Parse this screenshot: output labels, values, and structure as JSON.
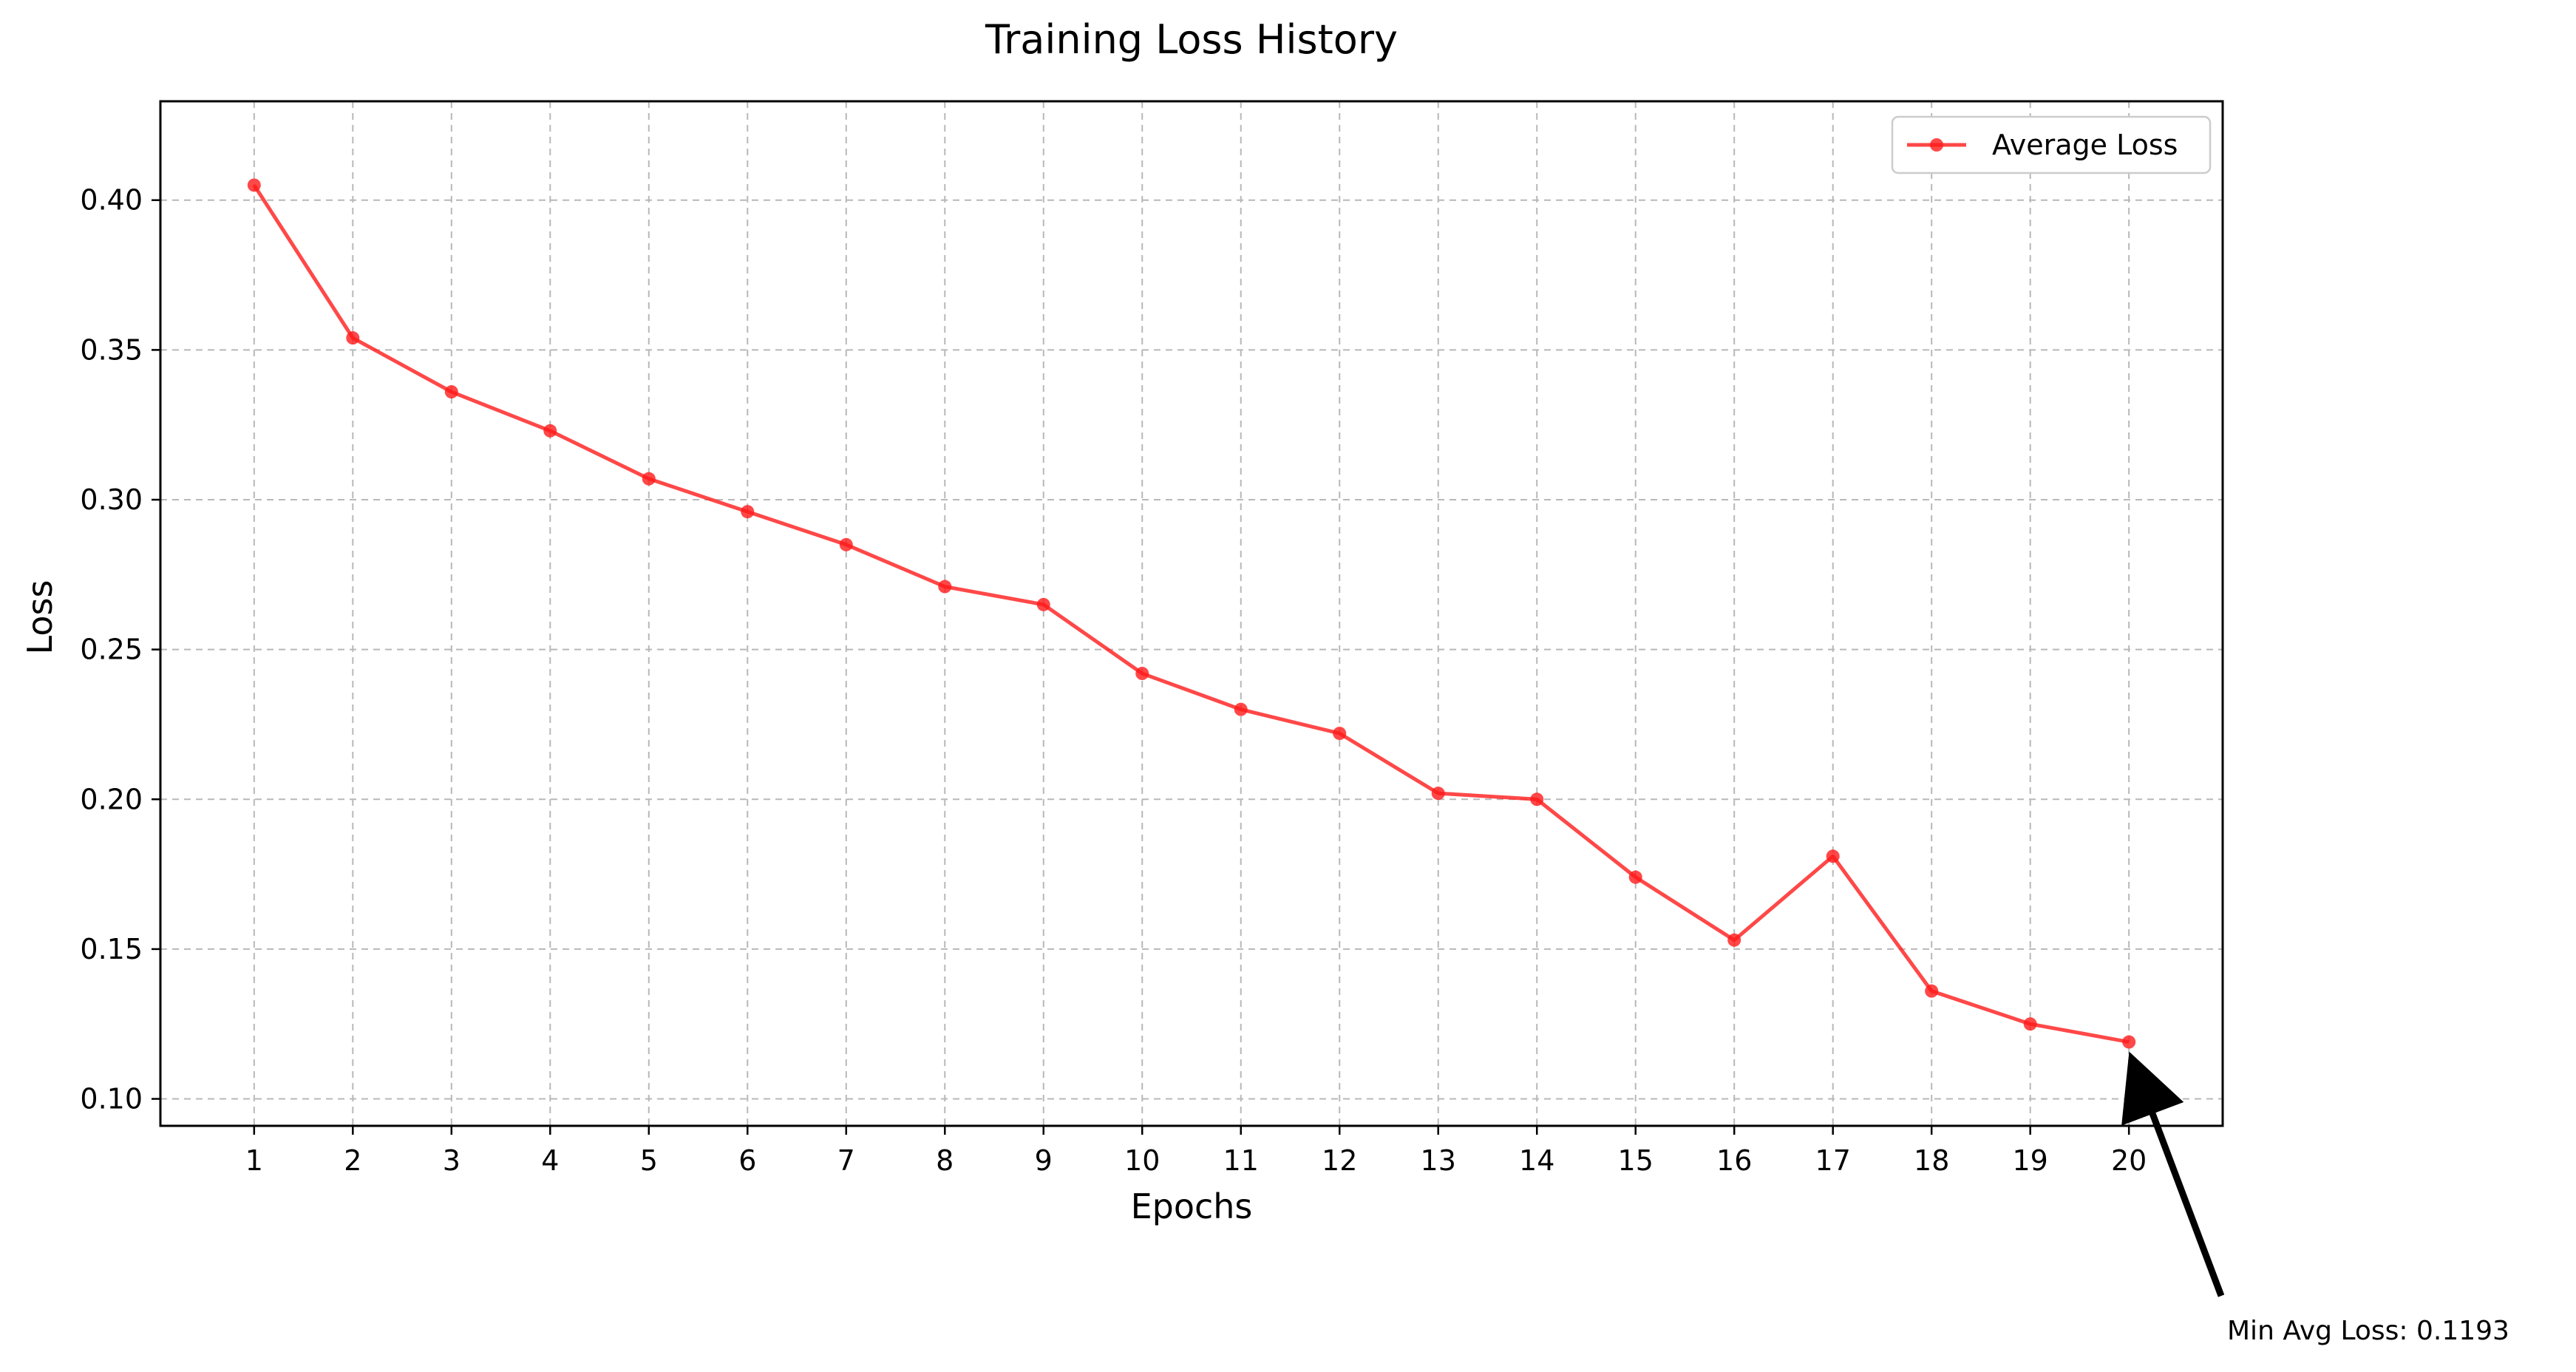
{
  "chart_data": {
    "type": "line",
    "title": "Training Loss History",
    "xlabel": "Epochs",
    "ylabel": "Loss",
    "x": [
      1,
      2,
      3,
      4,
      5,
      6,
      7,
      8,
      9,
      10,
      11,
      12,
      13,
      14,
      15,
      16,
      17,
      18,
      19,
      20
    ],
    "x_tick_labels": [
      "1",
      "2",
      "3",
      "4",
      "5",
      "6",
      "7",
      "8",
      "9",
      "10",
      "11",
      "12",
      "13",
      "14",
      "15",
      "16",
      "17",
      "18",
      "19",
      "20"
    ],
    "y_ticks": [
      0.1,
      0.15,
      0.2,
      0.25,
      0.3,
      0.35,
      0.4
    ],
    "y_tick_labels": [
      "0.10",
      "0.15",
      "0.20",
      "0.25",
      "0.30",
      "0.35",
      "0.40"
    ],
    "xlim": [
      0.05,
      20.95
    ],
    "ylim": [
      0.091,
      0.433
    ],
    "grid": true,
    "legend_position": "top-right",
    "series": [
      {
        "name": "Average Loss",
        "color": "#ff1a1a",
        "marker": "circle",
        "values": [
          0.405,
          0.354,
          0.336,
          0.323,
          0.307,
          0.296,
          0.285,
          0.271,
          0.265,
          0.242,
          0.23,
          0.222,
          0.202,
          0.2,
          0.174,
          0.153,
          0.181,
          0.136,
          0.125,
          0.119
        ]
      }
    ],
    "annotations": [
      {
        "text": "Min Avg Loss: 0.1193",
        "x": 20,
        "y": 0.1193,
        "arrow": true
      }
    ]
  }
}
